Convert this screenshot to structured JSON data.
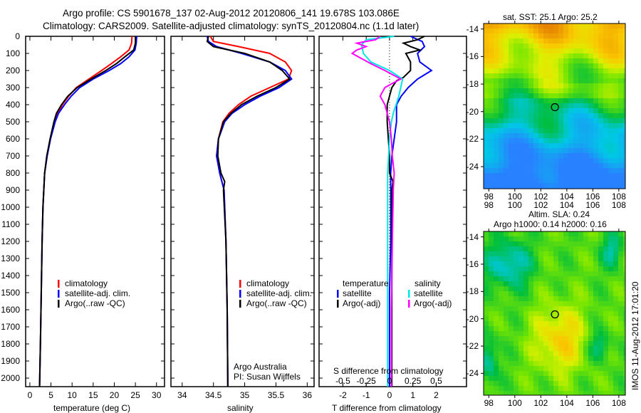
{
  "title_line1": "Argo profile: CS 5901678_137 02-Aug-2012 20120806_141 19.678S 103.086E",
  "title_line2": "Climatology: CARS2009. Satellite-adjusted climatology: synTS_20120804.nc (1.1d later)",
  "colors": {
    "climatology": "#ff0000",
    "satellite": "#0000ff",
    "argo": "#000000",
    "sal_satellite": "#00e5e5",
    "sal_argo": "#ff00ff"
  },
  "chart_data": [
    {
      "type": "line",
      "title": "",
      "xlabel": "temperature (deg C)",
      "ylabel": "",
      "xlim": [
        -1,
        31.9
      ],
      "ylim": [
        2050,
        0
      ],
      "xticks": [
        "0",
        "5",
        "10",
        "15",
        "20",
        "25",
        "30"
      ],
      "xtick_values": [
        0,
        5,
        10,
        15,
        20,
        25,
        30
      ],
      "yticks": [
        "0",
        "100",
        "200",
        "300",
        "400",
        "500",
        "600",
        "700",
        "800",
        "900",
        "1000",
        "1100",
        "1200",
        "1300",
        "1400",
        "1500",
        "1600",
        "1700",
        "1800",
        "1900",
        "2000"
      ],
      "legend": [
        "climatology",
        "satellite-adj. clim.",
        "Argo(..raw -QC)"
      ],
      "series": [
        {
          "name": "climatology",
          "depth": [
            0,
            40,
            80,
            120,
            160,
            200,
            250,
            300,
            350,
            400,
            450,
            500,
            600,
            700,
            800,
            1000,
            1200,
            1500,
            1800,
            2050
          ],
          "values": [
            24.2,
            24.1,
            23.5,
            21.5,
            19.3,
            17,
            14,
            11,
            9.2,
            7.7,
            6.6,
            5.8,
            4.8,
            4.1,
            3.5,
            3.1,
            2.9,
            2.7,
            2.5,
            2.3
          ]
        },
        {
          "name": "satellite-adj. clim.",
          "depth": [
            0,
            40,
            80,
            120,
            160,
            200,
            250,
            300,
            350,
            400,
            450,
            500,
            600,
            700,
            800,
            1000,
            1200,
            1500,
            1800,
            2050
          ],
          "values": [
            25.3,
            25.2,
            24.9,
            23.5,
            21.5,
            18.8,
            15,
            11.8,
            9.8,
            8.2,
            6.8,
            6,
            4.9,
            4.1,
            3.5,
            3.1,
            2.9,
            2.7,
            2.5,
            2.3
          ]
        },
        {
          "name": "Argo(..raw -QC)",
          "depth": [
            0,
            40,
            80,
            120,
            160,
            200,
            250,
            300,
            350,
            400,
            450,
            500,
            600,
            700,
            800,
            1000,
            1200,
            1500,
            1800,
            2050
          ],
          "values": [
            25.0,
            25.0,
            24.6,
            22.5,
            20.5,
            18,
            14.5,
            11.2,
            9,
            7.5,
            6.3,
            5.7,
            4.8,
            4.0,
            3.5,
            3.1,
            2.9,
            2.7,
            2.5,
            2.3
          ]
        }
      ]
    },
    {
      "type": "line",
      "xlabel": "salinity",
      "xlim": [
        33.82,
        36.11
      ],
      "ylim": [
        2050,
        0
      ],
      "xticks": [
        "34",
        "34.5",
        "35",
        "35.5",
        "36"
      ],
      "xtick_values": [
        34,
        34.5,
        35,
        35.5,
        36
      ],
      "legend": [
        "climatology",
        "satellite-adj. clim.",
        "Argo(..raw -QC)"
      ],
      "annotation": [
        "Argo Australia",
        "PI: Susan Wijffels"
      ],
      "series": [
        {
          "name": "climatology",
          "depth": [
            0,
            30,
            60,
            100,
            150,
            200,
            250,
            300,
            350,
            400,
            450,
            500,
            600,
            700,
            800,
            900,
            1200,
            1600,
            2050
          ],
          "values": [
            34.45,
            34.5,
            34.9,
            35.4,
            35.65,
            35.75,
            35.7,
            35.4,
            35.1,
            34.9,
            34.75,
            34.65,
            34.58,
            34.55,
            34.6,
            34.67,
            34.7,
            34.72,
            34.73
          ]
        },
        {
          "name": "satellite-adj. clim.",
          "depth": [
            0,
            30,
            60,
            100,
            150,
            200,
            250,
            300,
            350,
            400,
            450,
            500,
            600,
            700,
            800,
            900,
            1200,
            1600,
            2050
          ],
          "values": [
            34.4,
            34.42,
            34.55,
            34.95,
            35.4,
            35.65,
            35.75,
            35.55,
            35.25,
            35,
            34.8,
            34.68,
            34.58,
            34.55,
            34.6,
            34.67,
            34.7,
            34.72,
            34.73
          ]
        },
        {
          "name": "Argo(..raw -QC)",
          "depth": [
            0,
            30,
            60,
            100,
            150,
            200,
            250,
            300,
            350,
            400,
            450,
            500,
            600,
            700,
            800,
            850,
            900,
            1200,
            1600,
            2050
          ],
          "values": [
            34.42,
            34.4,
            34.5,
            35.0,
            35.4,
            35.6,
            35.72,
            35.5,
            35.2,
            34.95,
            34.78,
            34.66,
            34.58,
            34.57,
            34.62,
            34.68,
            34.66,
            34.7,
            34.72,
            34.73
          ]
        }
      ]
    },
    {
      "type": "line",
      "xlabel": "T difference from climatology",
      "x2label": "S difference from climatology",
      "xlim": [
        -3.02,
        3.3
      ],
      "ylim": [
        2050,
        0
      ],
      "xticks": [
        "-2",
        "-1",
        "0",
        "1",
        "2"
      ],
      "xtick_values": [
        -2,
        -1,
        0,
        1,
        2
      ],
      "x2ticks": [
        "-0.5",
        "-0.25",
        "0",
        "0.25",
        "0.5"
      ],
      "x2tick_values": [
        -0.5,
        -0.25,
        0,
        0.25,
        0.5
      ],
      "legend": {
        "temperature_header": "temperature",
        "salinity_header": "salinity",
        "t_satellite": "satellite",
        "t_argo": "Argo(-adj)",
        "s_satellite": "satellite",
        "s_argo": "Argo(-adj)"
      },
      "series": [
        {
          "name": "T satellite",
          "depth": [
            0,
            30,
            60,
            100,
            150,
            200,
            250,
            300,
            350,
            400,
            450,
            500,
            600,
            700,
            800,
            900,
            1000,
            1200,
            1500,
            2050
          ],
          "values": [
            0.9,
            1.4,
            1.5,
            1.2,
            1.3,
            1.8,
            1.2,
            0.8,
            0.5,
            0.3,
            0.3,
            0.3,
            0.2,
            0.1,
            0.05,
            0.05,
            0.05,
            0.05,
            0.0,
            0.0
          ]
        },
        {
          "name": "T Argo(-adj)",
          "depth": [
            0,
            20,
            40,
            60,
            80,
            100,
            150,
            200,
            240,
            260,
            300,
            350,
            400,
            500,
            600,
            700,
            800,
            850,
            900,
            1200,
            1500,
            2050
          ],
          "values": [
            1.5,
            1.2,
            0.6,
            0.9,
            1.3,
            0.7,
            0.9,
            0.9,
            0.6,
            0.3,
            0.1,
            0,
            -0.1,
            -0.1,
            -0.05,
            0,
            0,
            0.15,
            0.1,
            0.1,
            0.1,
            0.1
          ]
        },
        {
          "name": "S satellite",
          "depth": [
            0,
            20,
            50,
            100,
            150,
            200,
            250,
            300,
            350,
            400,
            450,
            500,
            600,
            700,
            800,
            900,
            1200,
            1600,
            2050
          ],
          "values": [
            0.05,
            -0.25,
            -0.3,
            -0.28,
            -0.2,
            0,
            0.14,
            0.12,
            0.1,
            0.07,
            0.04,
            0.02,
            0.0,
            -0.01,
            -0.02,
            -0.02,
            -0.02,
            -0.02,
            -0.02
          ]
        },
        {
          "name": "S Argo(-adj)",
          "depth": [
            0,
            20,
            40,
            60,
            80,
            100,
            130,
            160,
            200,
            250,
            270,
            300,
            350,
            400,
            500,
            600,
            700,
            800,
            900,
            1200,
            1600,
            2050
          ],
          "values": [
            -0.1,
            -0.15,
            -0.35,
            -0.25,
            -0.35,
            -0.4,
            -0.3,
            -0.2,
            -0.05,
            0.12,
            0.05,
            -0.05,
            -0.1,
            -0.05,
            0,
            0.02,
            0.03,
            0.05,
            0.04,
            0.03,
            0.02,
            0.02
          ]
        }
      ]
    },
    {
      "type": "heatmap",
      "title": "sat. SST: 25.1 Argo: 25.2",
      "xlim": [
        97.6,
        108.5
      ],
      "ylim": [
        -25.6,
        -13.6
      ],
      "xticks": [
        "98",
        "100",
        "102",
        "104",
        "106",
        "108"
      ],
      "yticks": [
        "-14",
        "-16",
        "-18",
        "-20",
        "-22",
        "-24"
      ],
      "marker": {
        "lon": 103.086,
        "lat": -19.678
      }
    },
    {
      "type": "heatmap",
      "title": "Altim. SLA: 0.24",
      "subtitle": "Argo h1000: 0.14 h2000: 0.16",
      "xlim": [
        97.6,
        108.5
      ],
      "ylim": [
        -25.6,
        -13.6
      ],
      "xticks": [
        "98",
        "100",
        "102",
        "104",
        "106",
        "108"
      ],
      "yticks": [
        "-14",
        "-16",
        "-18",
        "-20",
        "-22",
        "-24"
      ],
      "marker": {
        "lon": 103.086,
        "lat": -19.678
      }
    }
  ],
  "credit": "IMOS 11-Aug-2012 17:01:20"
}
